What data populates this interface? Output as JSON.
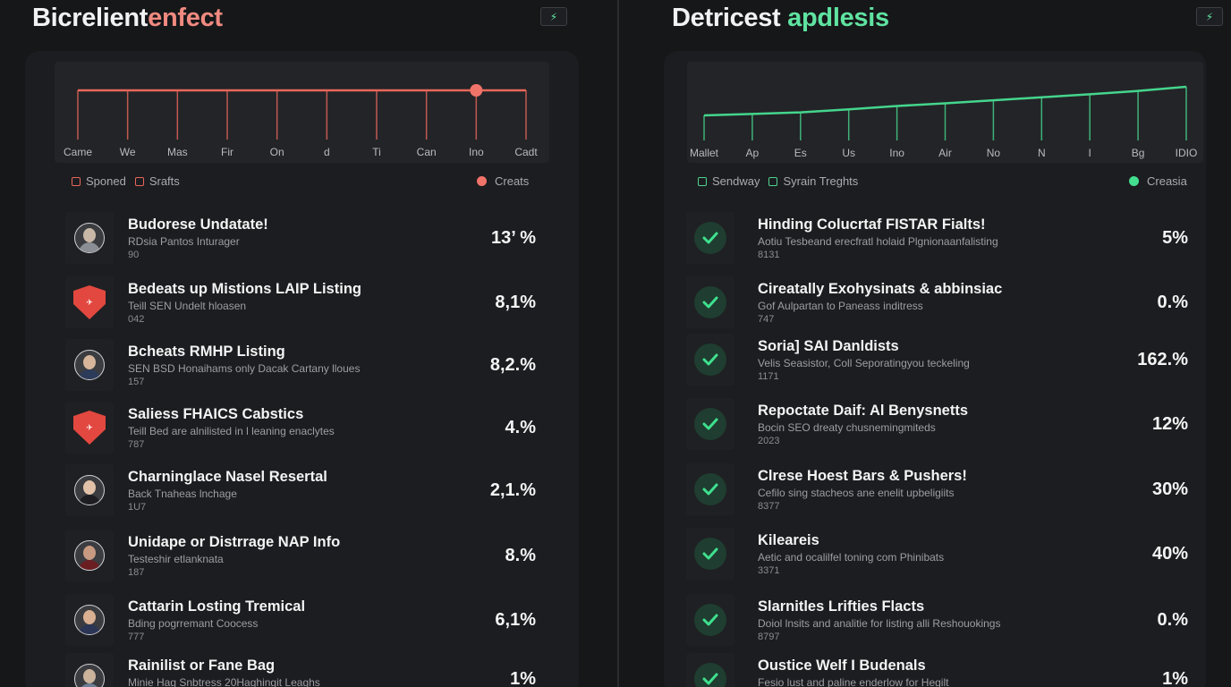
{
  "left": {
    "title_a": "Bicrelient",
    "title_b": "enfect",
    "corner_icon": "sparkline-icon",
    "chart": {
      "x_labels": [
        "Came",
        "We",
        "Mas",
        "Fir",
        "On",
        "d",
        "Ti",
        "Can",
        "Ino",
        "Cadt"
      ],
      "line_color": "#e8675b",
      "values": [
        1,
        1,
        1,
        1,
        1,
        1,
        1,
        1,
        1,
        1
      ],
      "highlight_index": 8,
      "highlight_color": "#f0736a"
    },
    "legend": {
      "a": "Sponed",
      "b": "Srafts",
      "right": "Creats"
    },
    "rows": [
      {
        "icon": "person-icon",
        "title": "Budorese Undatate!",
        "sub": "RDsia Pantos Inturager",
        "num": "90",
        "pct": "13’ %",
        "face": "#c9b8a8",
        "body": "#8b8e94"
      },
      {
        "icon": "shield-icon",
        "title": "Bedeats up Mistions LAIP Listing",
        "sub": "Teill SEN Undelt hloasen",
        "num": "042",
        "pct": "8,1%"
      },
      {
        "icon": "person-icon",
        "title": "Bcheats RMHP Listing",
        "sub": "SEN BSD Honaihams only Dacak Cartany lloues",
        "num": "157",
        "pct": "8,2.%",
        "face": "#d6b59a",
        "body": "#2d3b5a"
      },
      {
        "icon": "shield-icon",
        "title": "Saliess FHAICS Cabstics",
        "sub": "Teill Bed are alnilisted in l leaning enaclytes",
        "num": "787",
        "pct": "4.%"
      },
      {
        "icon": "person-icon",
        "title": "Charninglace Nasel Resertal",
        "sub": "Back Tnaheas lnchage",
        "num": "1U7",
        "pct": "2,1.%",
        "face": "#e1c2a8",
        "body": "#1e1e22"
      },
      {
        "icon": "person-icon",
        "title": "Unidape or Distrrage NAP Info",
        "sub": "Testeshir etlanknata",
        "num": "187",
        "pct": "8.%",
        "face": "#c99a82",
        "body": "#6a1e22"
      },
      {
        "icon": "person-icon",
        "title": "Cattarin Losting Tremical",
        "sub": "Bding pogrremant Coocess",
        "num": "777",
        "pct": "6,1%",
        "face": "#d9b091",
        "body": "#2b3556"
      },
      {
        "icon": "person-icon",
        "title": "Rainilist or Fane Bag",
        "sub": "Minie Hag Snbtress 20Haghingit Leaghs",
        "num": "",
        "pct": "1%",
        "face": "#cbb39c",
        "body": "#6b7f95"
      }
    ]
  },
  "right": {
    "title_a": "Detricest ",
    "title_b": "apdlesis",
    "corner_icon": "sparkline-icon",
    "chart": {
      "x_labels": [
        "Mallet",
        "Ap",
        "Es",
        "Us",
        "Ino",
        "Air",
        "No",
        "N",
        "I",
        "Bg",
        "IDIO"
      ],
      "line_color": "#45d58d",
      "values": [
        1.0,
        1.4,
        1.8,
        2.6,
        3.5,
        4.2,
        5.0,
        5.8,
        6.6,
        7.5,
        8.6
      ]
    },
    "legend": {
      "a": "Sendway",
      "b": "Syrain Treghts",
      "right": "Creasia"
    },
    "rows": [
      {
        "icon": "check-icon",
        "title": "Hinding Colucrtaf FISTAR Fialts!",
        "sub": "Aotiu Tesbeand erecfratl holaid Plgnionaanfalisting",
        "num": "8131",
        "pct": "5%"
      },
      {
        "icon": "check-icon",
        "title": "Cireatally Exohysinats & abbinsiac",
        "sub": "Gof Aulpartan to Paneass inditress",
        "num": "747",
        "pct": "0.%"
      },
      {
        "icon": "check-icon",
        "title": "Soria] SAI Danldists",
        "sub": "Velis Seasistor, Coll Seporatingyou teckeling",
        "num": "1171",
        "pct": "162.%"
      },
      {
        "icon": "check-icon",
        "title": "Repoctate Daif: Al Benysnetts",
        "sub": "Bocin SEO dreaty chusnemingmiteds",
        "num": "2023",
        "pct": "12%"
      },
      {
        "icon": "check-icon",
        "title": "Clrese Hoest Bars & Pushers!",
        "sub": "Cefilo sing stacheos ane enelit upbeligiits",
        "num": "8377",
        "pct": "30%"
      },
      {
        "icon": "check-icon",
        "title": "Kileareis",
        "sub": "Aetic and ocalilfel toning com Phinibats",
        "num": "3371",
        "pct": "40%"
      },
      {
        "icon": "check-icon",
        "title": "Slarnitles Lrifties Flacts",
        "sub": "Doiol lnsits and analitie for listing alli Reshouokings",
        "num": "8797",
        "pct": "0.%"
      },
      {
        "icon": "check-icon",
        "title": "Oustice Welf I Budenals",
        "sub": "Fesio lust and paline enderlow for Hegilt",
        "num": "",
        "pct": "1%"
      }
    ]
  }
}
